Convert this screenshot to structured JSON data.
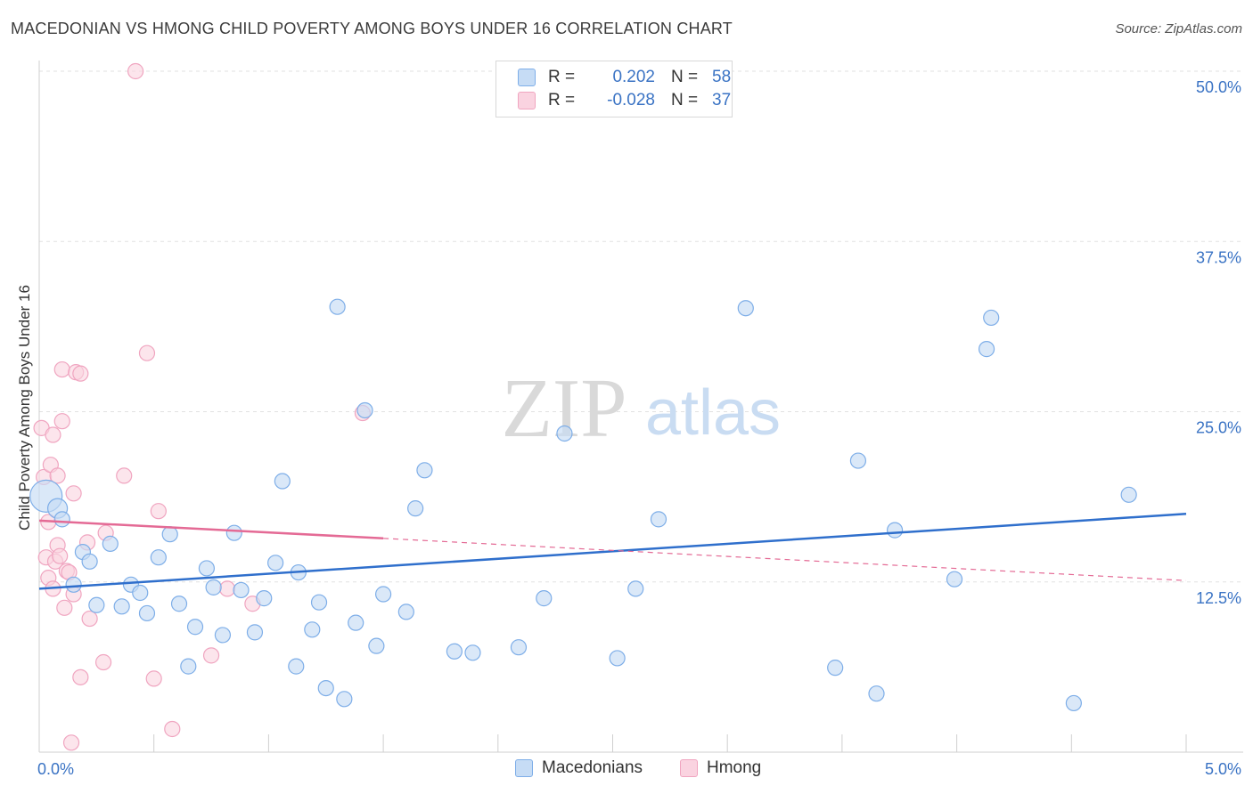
{
  "title": "MACEDONIAN VS HMONG CHILD POVERTY AMONG BOYS UNDER 16 CORRELATION CHART",
  "source": "Source: ZipAtlas.com",
  "watermark": {
    "zip": "ZIP",
    "atlas": "atlas"
  },
  "legend": {
    "r_label": "R =",
    "n_label": "N =",
    "rows": [
      {
        "r": "0.202",
        "n": "58"
      },
      {
        "r": "-0.028",
        "n": "37"
      }
    ]
  },
  "bottom_legend": [
    "Macedonians",
    "Hmong"
  ],
  "chart_data": {
    "type": "scatter",
    "ylabel": "Child Poverty Among Boys Under 16",
    "xlim": [
      0,
      5
    ],
    "ylim": [
      0,
      50
    ],
    "x_tick_labels": [
      "0.0%",
      "5.0%"
    ],
    "y_ticks": [
      12.5,
      25.0,
      37.5,
      50.0
    ],
    "y_tick_labels": [
      "12.5%",
      "25.0%",
      "37.5%",
      "50.0%"
    ],
    "grid": true,
    "colors": {
      "macedonians": "#7eaee8",
      "macedonians_fill": "#c6dcf5",
      "macedonians_line": "#2f6fcc",
      "hmong": "#f0a5c0",
      "hmong_fill": "#fad3e0",
      "hmong_line": "#e46a95",
      "axis_label": "#3a73c4"
    },
    "series": [
      {
        "name": "Macedonians",
        "trend": {
          "x0": 0.0,
          "y0": 12.0,
          "x1": 5.0,
          "y1": 17.5
        },
        "points": [
          [
            0.03,
            18.8
          ],
          [
            0.08,
            17.9
          ],
          [
            0.1,
            17.1
          ],
          [
            0.15,
            12.3
          ],
          [
            0.19,
            14.7
          ],
          [
            0.22,
            14.0
          ],
          [
            0.25,
            10.8
          ],
          [
            0.31,
            15.3
          ],
          [
            0.36,
            10.7
          ],
          [
            0.4,
            12.3
          ],
          [
            0.44,
            11.7
          ],
          [
            0.47,
            10.2
          ],
          [
            0.52,
            14.3
          ],
          [
            0.57,
            16.0
          ],
          [
            0.61,
            10.9
          ],
          [
            0.65,
            6.3
          ],
          [
            0.68,
            9.2
          ],
          [
            0.73,
            13.5
          ],
          [
            0.76,
            12.1
          ],
          [
            0.8,
            8.6
          ],
          [
            0.85,
            16.1
          ],
          [
            0.88,
            11.9
          ],
          [
            0.94,
            8.8
          ],
          [
            0.98,
            11.3
          ],
          [
            1.03,
            13.9
          ],
          [
            1.06,
            19.9
          ],
          [
            1.12,
            6.3
          ],
          [
            1.13,
            13.2
          ],
          [
            1.19,
            9.0
          ],
          [
            1.22,
            11.0
          ],
          [
            1.25,
            4.7
          ],
          [
            1.3,
            32.7
          ],
          [
            1.33,
            3.9
          ],
          [
            1.38,
            9.5
          ],
          [
            1.42,
            25.1
          ],
          [
            1.47,
            7.8
          ],
          [
            1.5,
            11.6
          ],
          [
            1.6,
            10.3
          ],
          [
            1.64,
            17.9
          ],
          [
            1.68,
            20.7
          ],
          [
            1.81,
            7.4
          ],
          [
            1.89,
            7.3
          ],
          [
            2.09,
            7.7
          ],
          [
            2.2,
            11.3
          ],
          [
            2.29,
            23.4
          ],
          [
            2.52,
            6.9
          ],
          [
            2.6,
            12.0
          ],
          [
            2.7,
            17.1
          ],
          [
            3.08,
            32.6
          ],
          [
            3.47,
            6.2
          ],
          [
            3.57,
            21.4
          ],
          [
            3.65,
            4.3
          ],
          [
            3.73,
            16.3
          ],
          [
            3.99,
            12.7
          ],
          [
            4.13,
            29.6
          ],
          [
            4.15,
            31.9
          ],
          [
            4.51,
            3.6
          ],
          [
            4.75,
            18.9
          ]
        ]
      },
      {
        "name": "Hmong",
        "trend": {
          "x0": 0.0,
          "y0": 17.0,
          "x1": 1.5,
          "y1": 15.7,
          "dash_x1": 5.0,
          "dash_y1": 12.6
        },
        "points": [
          [
            0.01,
            23.8
          ],
          [
            0.02,
            20.2
          ],
          [
            0.03,
            14.3
          ],
          [
            0.04,
            16.9
          ],
          [
            0.04,
            12.8
          ],
          [
            0.05,
            21.1
          ],
          [
            0.06,
            12.0
          ],
          [
            0.06,
            23.3
          ],
          [
            0.07,
            14.0
          ],
          [
            0.08,
            15.2
          ],
          [
            0.08,
            20.3
          ],
          [
            0.09,
            14.4
          ],
          [
            0.1,
            28.1
          ],
          [
            0.1,
            24.3
          ],
          [
            0.11,
            10.6
          ],
          [
            0.12,
            13.3
          ],
          [
            0.13,
            13.2
          ],
          [
            0.14,
            0.7
          ],
          [
            0.15,
            11.6
          ],
          [
            0.15,
            19.0
          ],
          [
            0.16,
            27.9
          ],
          [
            0.18,
            27.8
          ],
          [
            0.18,
            5.5
          ],
          [
            0.21,
            15.4
          ],
          [
            0.22,
            9.8
          ],
          [
            0.28,
            6.6
          ],
          [
            0.29,
            16.1
          ],
          [
            0.37,
            20.3
          ],
          [
            0.42,
            50.0
          ],
          [
            0.47,
            29.3
          ],
          [
            0.5,
            5.4
          ],
          [
            0.52,
            17.7
          ],
          [
            0.58,
            1.7
          ],
          [
            0.75,
            7.1
          ],
          [
            0.82,
            12.0
          ],
          [
            0.93,
            10.9
          ],
          [
            1.41,
            24.9
          ]
        ]
      }
    ]
  }
}
